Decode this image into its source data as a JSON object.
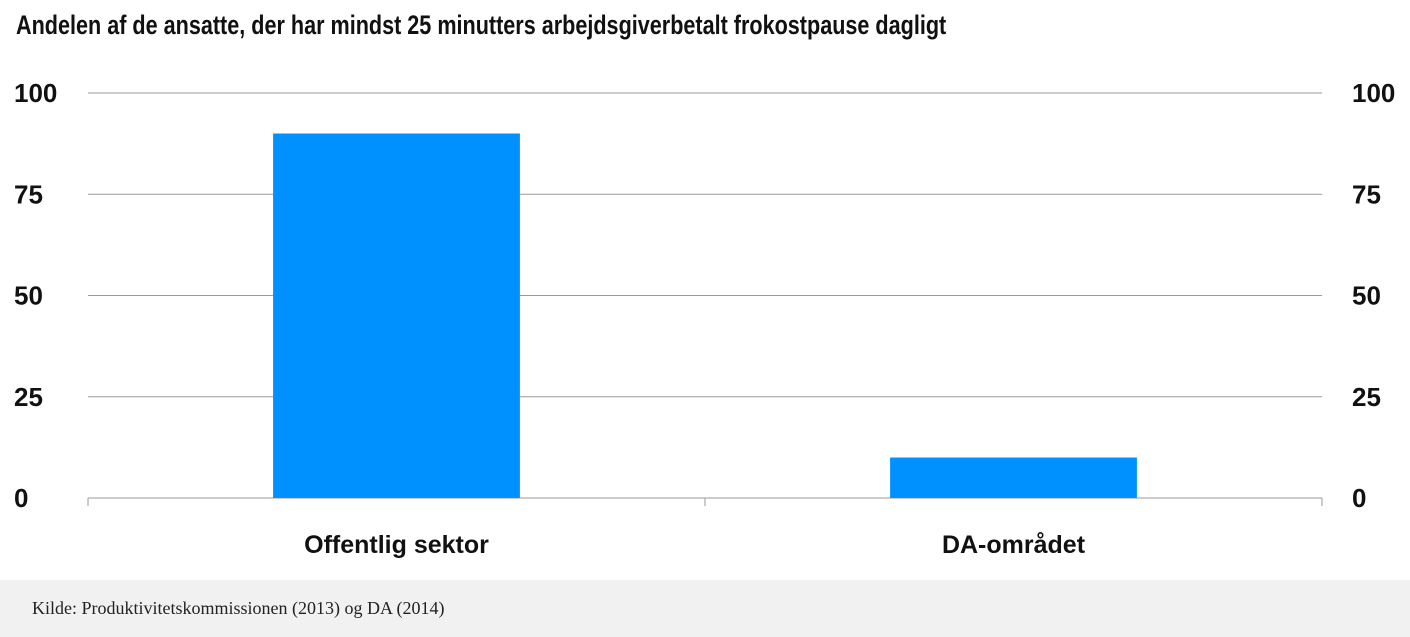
{
  "chart_data": {
    "type": "bar",
    "title": "Andelen af de ansatte, der har mindst 25 minutters arbejdsgiverbetalt frokostpause dagligt",
    "categories": [
      "Offentlig sektor",
      "DA-området"
    ],
    "values": [
      90,
      10
    ],
    "ylim": [
      0,
      100
    ],
    "yticks": [
      "0",
      "25",
      "50",
      "75",
      "100"
    ],
    "xlabel": "",
    "ylabel": "",
    "grid": true,
    "bar_color": "#0091ff",
    "legend": "none"
  },
  "footer": {
    "source": "Kilde: Produktivitetskommissionen (2013) og DA (2014)"
  }
}
